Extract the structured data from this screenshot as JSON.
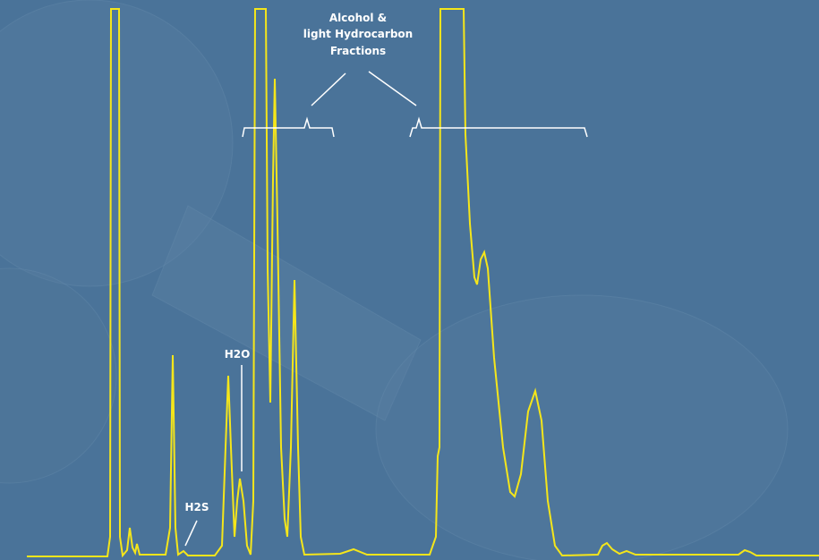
{
  "labels": {
    "fractions": [
      "Alcohol &",
      "light Hydrocarbon",
      "Fractions"
    ],
    "h2o": "H2O",
    "h2s": "H2S"
  }
}
